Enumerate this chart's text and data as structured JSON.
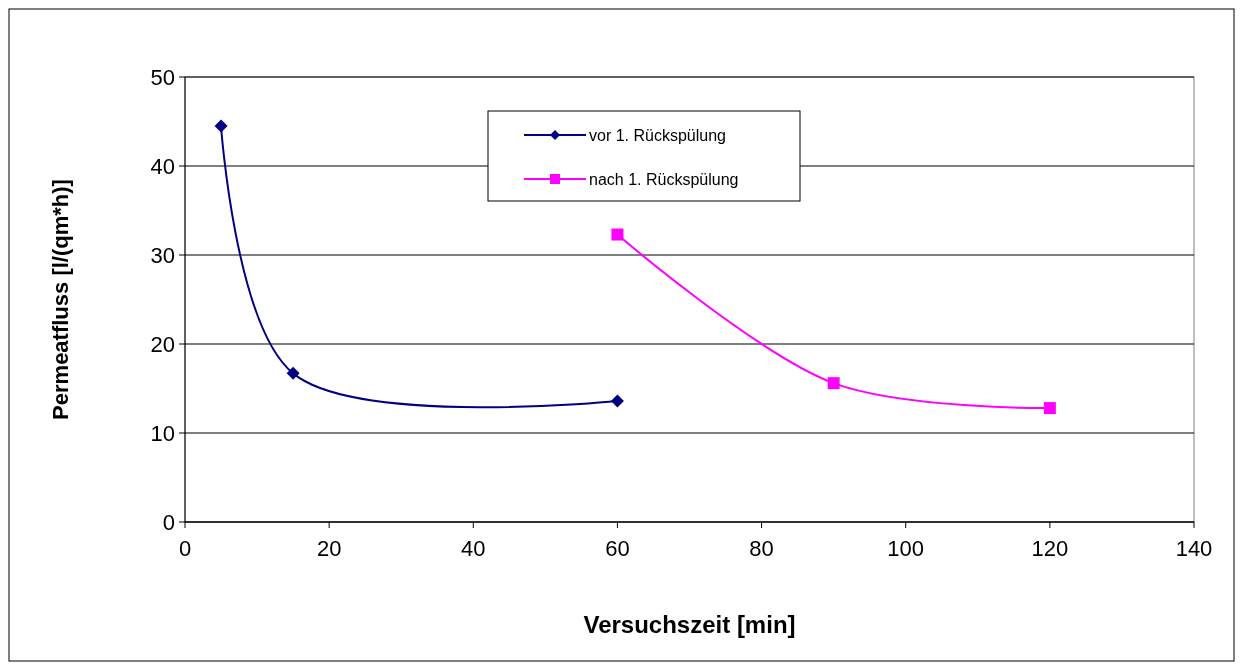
{
  "chart_data": {
    "type": "line",
    "xlabel": "Versuchszeit [min]",
    "ylabel": "Permeatfluss [l/(qm*h)]",
    "xlim": [
      0,
      140
    ],
    "xticks": [
      0,
      20,
      40,
      60,
      80,
      100,
      120,
      140
    ],
    "ylim": [
      0,
      50
    ],
    "yticks": [
      0,
      10,
      20,
      30,
      40,
      50
    ],
    "grid": "y",
    "legend": "top",
    "line_style": "solid",
    "series": [
      {
        "name": "vor 1. Rückspülung",
        "color": "#000080",
        "marker": "diamond",
        "x": [
          5,
          15,
          60
        ],
        "values": [
          44.5,
          16.7,
          13.6
        ]
      },
      {
        "name": "nach 1. Rückspülung",
        "color": "#ff00ff",
        "marker": "square",
        "x": [
          60,
          90,
          120
        ],
        "values": [
          32.3,
          15.6,
          12.8
        ]
      }
    ]
  }
}
